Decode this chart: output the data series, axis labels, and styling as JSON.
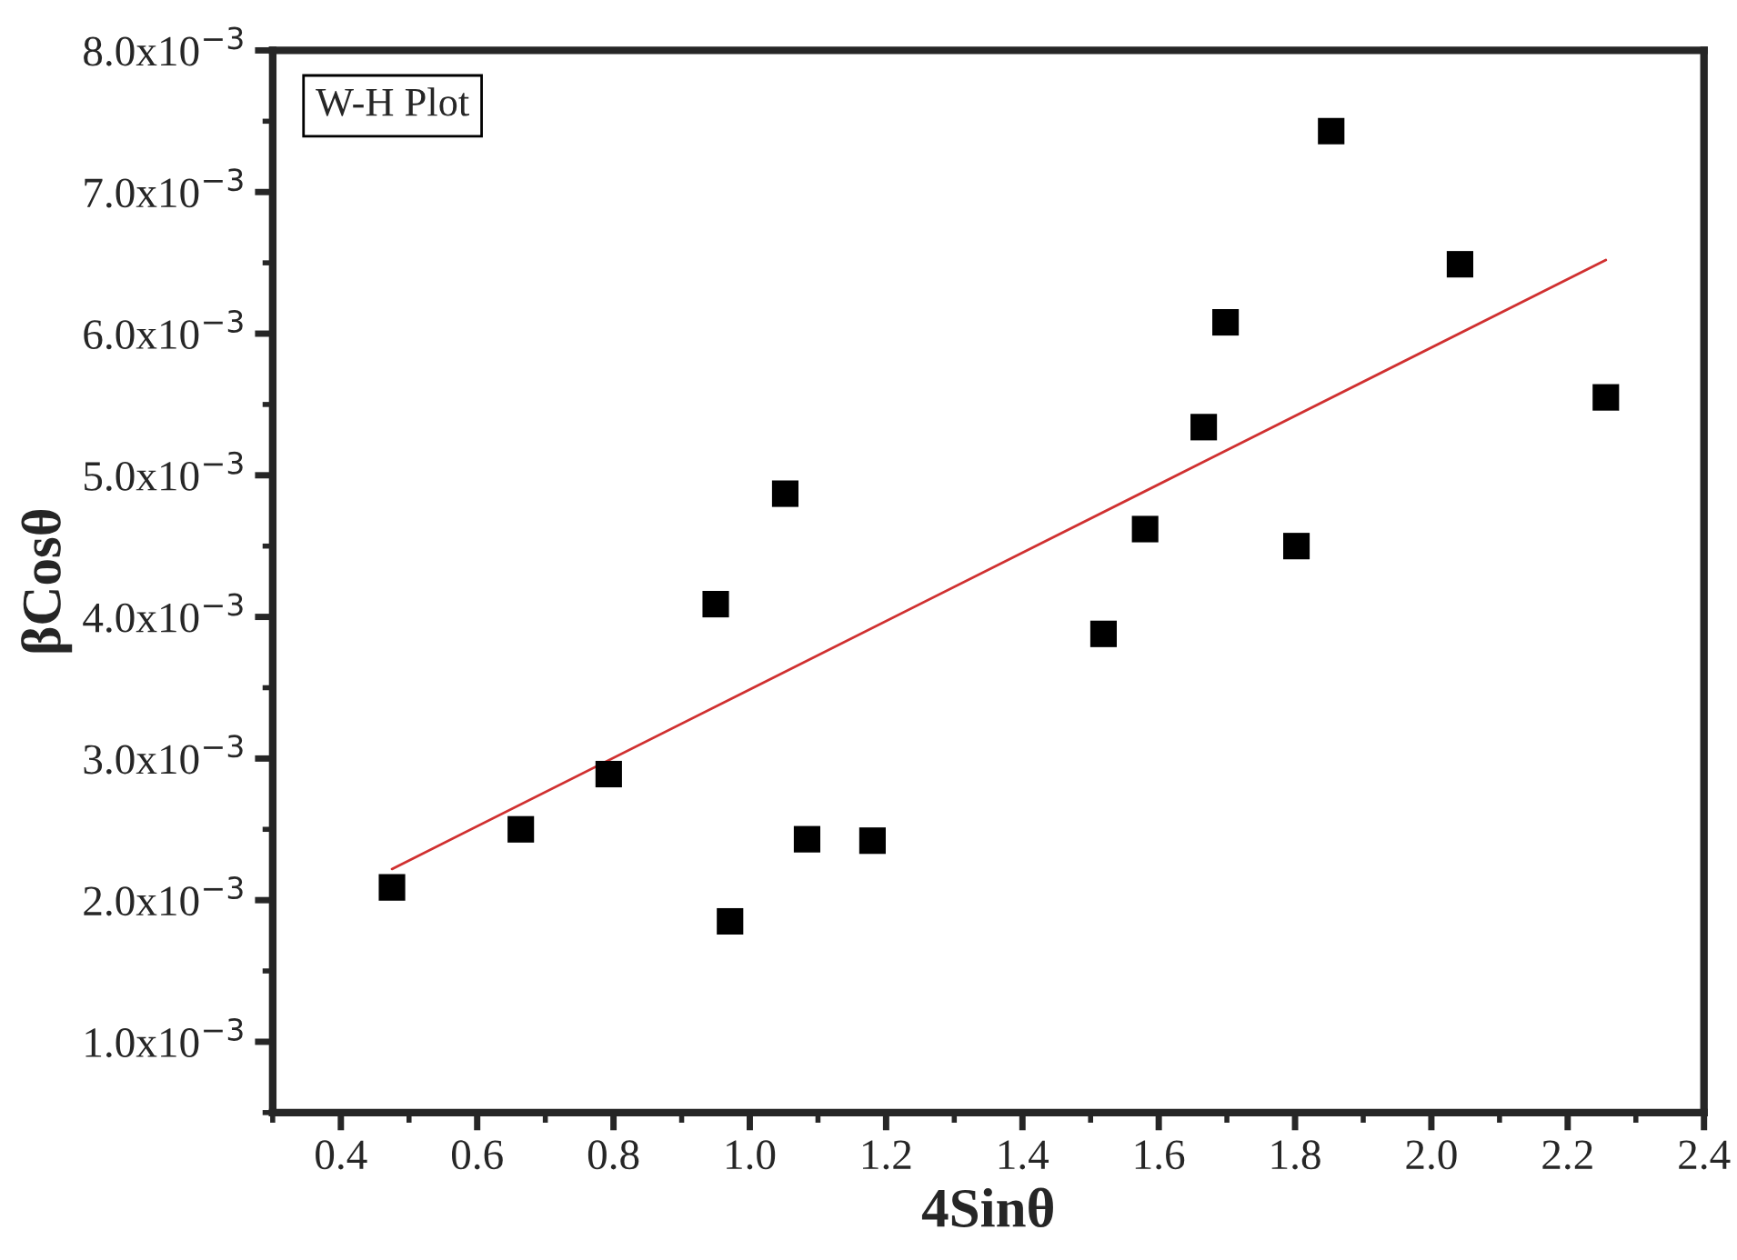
{
  "chart_data": {
    "type": "scatter",
    "xlabel": "4Sinθ",
    "ylabel": "βCosθ",
    "annotations": [
      "W-H Plot"
    ],
    "xlim": [
      0.3,
      2.4
    ],
    "xticks": [
      0.4,
      0.6,
      0.8,
      {
        "value": 1.0,
        "label": "1.0"
      },
      1.2,
      1.4,
      1.6,
      1.8,
      {
        "value": 2.0,
        "label": "2.0"
      },
      2.2,
      2.4
    ],
    "ylim": [
      0.0005,
      0.008
    ],
    "yticks": [
      {
        "value": 0.001,
        "label": "1.0x10$^{−3}$"
      },
      {
        "value": 0.002,
        "label": "2.0x10$^{−3}$"
      },
      {
        "value": 0.003,
        "label": "3.0x10$^{−3}$"
      },
      {
        "value": 0.004,
        "label": "4.0x10$^{−3}$"
      },
      {
        "value": 0.005,
        "label": "5.0x10$^{−3}$"
      },
      {
        "value": 0.006,
        "label": "6.0x10$^{−3}$"
      },
      {
        "value": 0.007,
        "label": "7.0x10$^{−3}$"
      },
      {
        "value": 0.008,
        "label": "8.0x10$^{−3}$"
      }
    ],
    "grid": false,
    "legend": false,
    "series": [
      {
        "marker": "square",
        "color": "#000000",
        "x": [
          0.475,
          0.664,
          0.793,
          0.95,
          0.971,
          1.052,
          1.084,
          1.18,
          1.519,
          1.58,
          1.666,
          1.698,
          1.802,
          1.853,
          2.042,
          2.256
        ],
        "values": [
          0.00209,
          0.0025,
          0.00289,
          0.00409,
          0.00185,
          0.00487,
          0.00243,
          0.00242,
          0.00388,
          0.00462,
          0.00534,
          0.00608,
          0.0045,
          0.00743,
          0.00649,
          0.00555
        ]
      },
      {
        "type": "line",
        "color": "#d03030",
        "x": [
          0.475,
          2.256
        ],
        "values": [
          0.00222,
          0.00652
        ]
      }
    ]
  }
}
